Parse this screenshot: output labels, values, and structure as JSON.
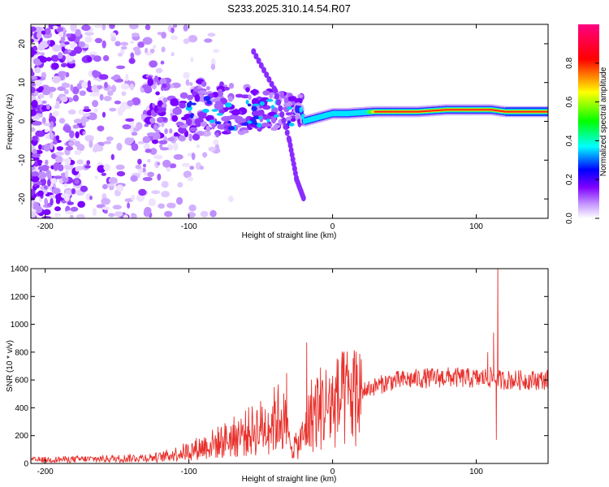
{
  "title": "S233.2025.310.14.54.R07",
  "chart_data": [
    {
      "type": "heatmap",
      "name": "spectrogram",
      "xlabel": "Height of straight line (km)",
      "ylabel": "Frequency (Hz)",
      "xlim": [
        -210,
        150
      ],
      "ylim": [
        -25,
        25
      ],
      "xticks": [
        -200,
        -100,
        0,
        100
      ],
      "xtick_labels": [
        "-200",
        "-100",
        "0",
        "100"
      ],
      "yticks": [
        20,
        10,
        0,
        -10,
        -20
      ],
      "ytick_labels": [
        "20",
        "10",
        "0",
        "-10",
        "-20"
      ],
      "colorbar": {
        "label": "Normalized spectral amplitude",
        "range": [
          0,
          1
        ],
        "ticks": [
          0.0,
          0.2,
          0.4,
          0.6,
          0.8
        ],
        "tick_labels": [
          "0.0",
          "0.2",
          "0.4",
          "0.6",
          "0.8"
        ],
        "colors": [
          "#ffffff",
          "#8000ff",
          "#0000ff",
          "#00ffff",
          "#00ff00",
          "#ffff00",
          "#ff0000",
          "#ff0080"
        ]
      },
      "ridge": {
        "description_points": [
          [
            -100,
            5
          ],
          [
            -60,
            3
          ],
          [
            -40,
            4
          ],
          [
            -22,
            3
          ],
          [
            -20,
            0
          ],
          [
            0,
            2
          ],
          [
            10,
            2
          ],
          [
            30,
            2.5
          ],
          [
            60,
            2.5
          ],
          [
            80,
            3
          ],
          [
            100,
            3
          ],
          [
            110,
            3
          ],
          [
            120,
            2.5
          ],
          [
            150,
            2.5
          ]
        ]
      },
      "feature_line": [
        [
          -55,
          18
        ],
        [
          -40,
          8
        ],
        [
          -30,
          -5
        ],
        [
          -25,
          -15
        ],
        [
          -20,
          -20
        ]
      ]
    },
    {
      "type": "line",
      "name": "snr",
      "xlabel": "Height of straight line (km)",
      "ylabel": "SNR (10 * v/v)",
      "xlim": [
        -210,
        150
      ],
      "ylim": [
        0,
        1400
      ],
      "xticks": [
        -200,
        -100,
        0,
        100
      ],
      "xtick_labels": [
        "-200",
        "-100",
        "0",
        "100"
      ],
      "yticks": [
        0,
        200,
        400,
        600,
        800,
        1000,
        1200,
        1400
      ],
      "ytick_labels": [
        "0",
        "200",
        "400",
        "600",
        "800",
        "1000",
        "1200",
        "1400"
      ],
      "color": "#e8302b",
      "envelope": [
        [
          -210,
          25
        ],
        [
          -180,
          30
        ],
        [
          -150,
          35
        ],
        [
          -120,
          45
        ],
        [
          -100,
          90
        ],
        [
          -80,
          150
        ],
        [
          -60,
          220
        ],
        [
          -45,
          280
        ],
        [
          -35,
          350
        ],
        [
          -30,
          150
        ],
        [
          -25,
          120
        ],
        [
          -20,
          200
        ],
        [
          -15,
          350
        ],
        [
          -10,
          400
        ],
        [
          0,
          420
        ],
        [
          20,
          520
        ],
        [
          40,
          590
        ],
        [
          60,
          610
        ],
        [
          80,
          620
        ],
        [
          100,
          610
        ],
        [
          110,
          620
        ],
        [
          115,
          600
        ],
        [
          120,
          600
        ],
        [
          150,
          600
        ]
      ],
      "spikes": [
        [
          -32,
          650
        ],
        [
          -28,
          40
        ],
        [
          -18,
          870
        ],
        [
          -15,
          120
        ],
        [
          108,
          800
        ],
        [
          112,
          940
        ],
        [
          115,
          1430
        ],
        [
          114,
          170
        ]
      ]
    }
  ]
}
